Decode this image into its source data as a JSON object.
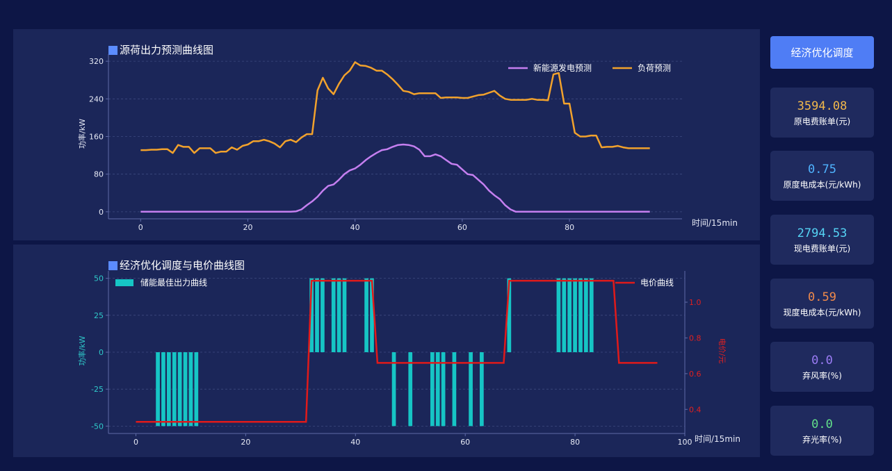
{
  "top_chart": {
    "title": "源荷出力预测曲线图"
  },
  "bottom_chart": {
    "title": "经济优化调度与电价曲线图"
  },
  "sidebar": {
    "optimize_button": "经济优化调度",
    "cards": [
      {
        "value": "3594.08",
        "label": "原电费账单(元)",
        "color": "#f2b84b"
      },
      {
        "value": "0.75",
        "label": "原度电成本(元/kWh)",
        "color": "#4fb3ff"
      },
      {
        "value": "2794.53",
        "label": "现电费账单(元)",
        "color": "#55d4f5"
      },
      {
        "value": "0.59",
        "label": "现度电成本(元/kWh)",
        "color": "#f08a4b"
      },
      {
        "value": "0.0",
        "label": "弃风率(%)",
        "color": "#9b7cf5"
      },
      {
        "value": "0.0",
        "label": "弃光率(%)",
        "color": "#62e08a"
      }
    ]
  },
  "chart_data": [
    {
      "type": "line",
      "title": "源荷出力预测曲线图",
      "xlabel": "时间/15min",
      "ylabel": "功率/kW",
      "xlim": [
        -6,
        101
      ],
      "ylim": [
        -15,
        335
      ],
      "xticks": [
        0,
        20,
        40,
        60,
        80
      ],
      "yticks": [
        0,
        80,
        160,
        240,
        320
      ],
      "grid": true,
      "legend_position": "top-right",
      "series": [
        {
          "name": "新能源发电预测",
          "color": "#c57ff0",
          "x": [
            0,
            28,
            29,
            30,
            31,
            32,
            33,
            34,
            35,
            36,
            37,
            38,
            39,
            40,
            41,
            42,
            43,
            44,
            45,
            46,
            47,
            48,
            49,
            50,
            51,
            52,
            53,
            54,
            55,
            56,
            57,
            58,
            59,
            60,
            61,
            62,
            63,
            64,
            65,
            66,
            67,
            68,
            69,
            70,
            95
          ],
          "y": [
            0,
            0,
            1,
            5,
            14,
            22,
            32,
            45,
            55,
            58,
            68,
            80,
            88,
            92,
            100,
            110,
            118,
            125,
            131,
            133,
            138,
            142,
            143,
            142,
            139,
            132,
            118,
            118,
            122,
            118,
            110,
            102,
            100,
            90,
            80,
            78,
            68,
            58,
            45,
            35,
            27,
            14,
            5,
            0,
            0
          ]
        },
        {
          "name": "负荷预测",
          "color": "#f2a22c",
          "x": [
            0,
            1,
            2,
            3,
            4,
            5,
            6,
            7,
            8,
            9,
            10,
            11,
            12,
            13,
            14,
            15,
            16,
            17,
            18,
            19,
            20,
            21,
            22,
            23,
            24,
            25,
            26,
            27,
            28,
            29,
            30,
            31,
            32,
            33,
            34,
            35,
            36,
            37,
            38,
            39,
            40,
            41,
            42,
            43,
            44,
            45,
            46,
            47,
            48,
            49,
            50,
            51,
            52,
            53,
            54,
            55,
            56,
            57,
            58,
            59,
            60,
            61,
            62,
            63,
            64,
            65,
            66,
            67,
            68,
            69,
            70,
            71,
            72,
            73,
            74,
            75,
            76,
            77,
            78,
            79,
            80,
            81,
            82,
            83,
            84,
            85,
            86,
            87,
            88,
            89,
            90,
            91,
            92,
            93,
            94,
            95
          ],
          "y": [
            131,
            131,
            132,
            132,
            133,
            133,
            125,
            142,
            138,
            138,
            125,
            135,
            135,
            135,
            125,
            128,
            128,
            137,
            132,
            140,
            143,
            150,
            150,
            153,
            150,
            145,
            137,
            150,
            153,
            148,
            158,
            165,
            165,
            258,
            285,
            262,
            250,
            272,
            290,
            300,
            318,
            311,
            310,
            306,
            300,
            300,
            292,
            282,
            270,
            257,
            255,
            250,
            252,
            252,
            252,
            252,
            242,
            243,
            243,
            243,
            242,
            242,
            245,
            248,
            249,
            253,
            257,
            247,
            240,
            238,
            238,
            238,
            238,
            240,
            238,
            238,
            237,
            292,
            295,
            230,
            230,
            168,
            160,
            160,
            162,
            162,
            137,
            138,
            138,
            140,
            137,
            135,
            135,
            135,
            135,
            135
          ]
        }
      ]
    },
    {
      "type": "bar",
      "title": "经济优化调度与电价曲线图",
      "xlabel": "时间/15min",
      "ylabel": "功率/kW",
      "y2label": "电价/元",
      "xlim": [
        -5,
        100
      ],
      "ylim": [
        -55,
        55
      ],
      "y2lim": [
        0.265,
        1.175
      ],
      "xticks": [
        0,
        20,
        40,
        60,
        80,
        100
      ],
      "yticks": [
        -50,
        -25,
        0,
        25,
        50
      ],
      "y2ticks": [
        0.4,
        0.6,
        0.8,
        1.0
      ],
      "grid": true,
      "legend_position": "top-left",
      "bar_series": {
        "name": "储能最佳出力曲线",
        "color": "#16c5c5",
        "x": [
          4,
          5,
          6,
          7,
          8,
          9,
          10,
          11,
          32,
          33,
          34,
          36,
          37,
          38,
          42,
          43,
          47,
          50,
          54,
          55,
          56,
          58,
          61,
          63,
          68,
          77,
          78,
          79,
          80,
          81,
          82,
          83
        ],
        "values": [
          -50,
          -50,
          -50,
          -50,
          -50,
          -50,
          -50,
          -50,
          50,
          50,
          50,
          50,
          50,
          50,
          50,
          50,
          -50,
          -50,
          -50,
          -50,
          -50,
          -50,
          -50,
          -50,
          50,
          50,
          50,
          50,
          50,
          50,
          50,
          50
        ]
      },
      "line_series": {
        "name": "电价曲线",
        "color": "#e01a1a",
        "x": [
          0,
          31,
          32,
          43,
          44,
          67,
          68,
          87,
          88,
          95
        ],
        "y": [
          0.33,
          0.33,
          1.12,
          1.12,
          0.66,
          0.66,
          1.12,
          1.12,
          0.66,
          0.66
        ]
      }
    }
  ]
}
